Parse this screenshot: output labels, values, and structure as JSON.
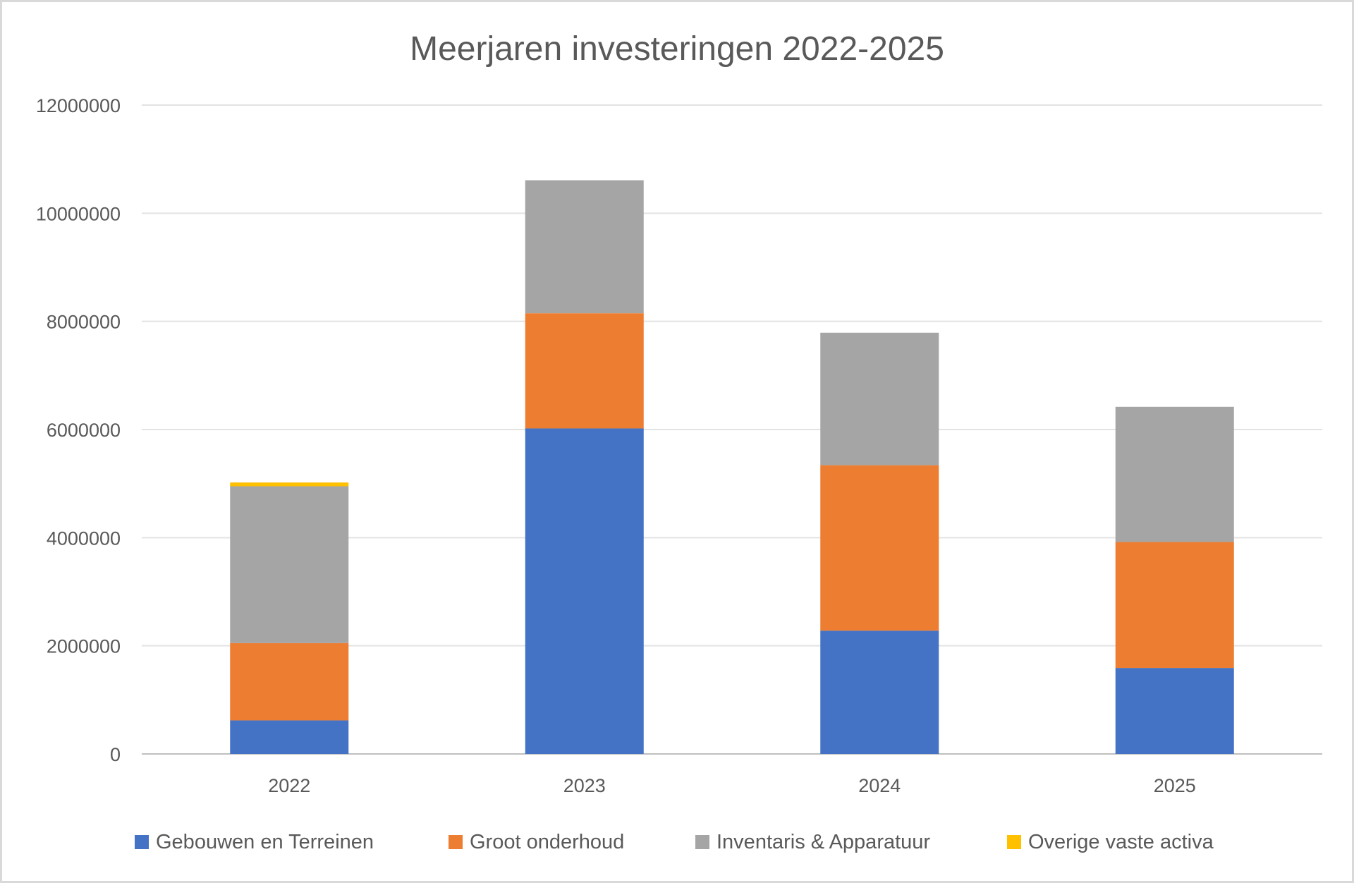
{
  "chart_data": {
    "type": "bar",
    "stacked": true,
    "title": "Meerjaren investeringen 2022-2025",
    "categories": [
      "2022",
      "2023",
      "2024",
      "2025"
    ],
    "series": [
      {
        "name": "Gebouwen en Terreinen",
        "color": "#4472c4",
        "values": [
          620000,
          6020000,
          2280000,
          1590000
        ]
      },
      {
        "name": "Groot onderhoud",
        "color": "#ed7d31",
        "values": [
          1430000,
          2130000,
          3060000,
          2330000
        ]
      },
      {
        "name": "Inventaris & Apparatuur",
        "color": "#a5a5a5",
        "values": [
          2900000,
          2460000,
          2450000,
          2500000
        ]
      },
      {
        "name": "Overige vaste activa",
        "color": "#ffc000",
        "values": [
          70000,
          0,
          0,
          0
        ]
      }
    ],
    "ylim": [
      0,
      12000000
    ],
    "yticks": [
      "0",
      "2000000",
      "4000000",
      "6000000",
      "8000000",
      "10000000",
      "12000000"
    ],
    "grid": true,
    "legend_position": "bottom"
  }
}
